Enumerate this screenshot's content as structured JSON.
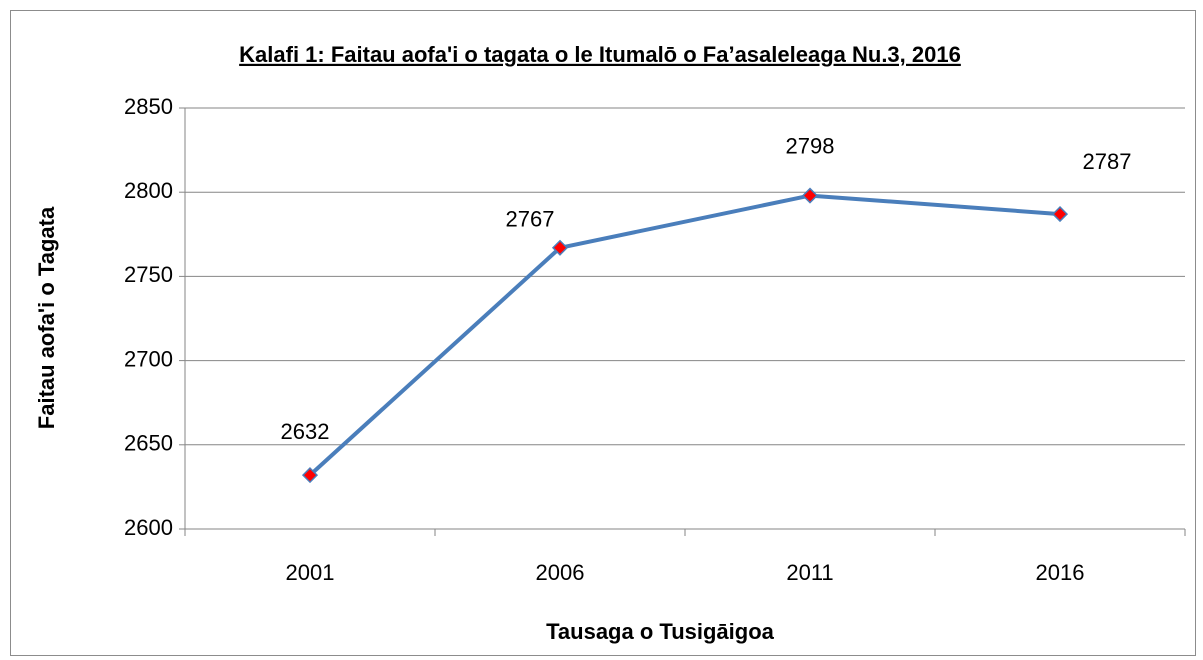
{
  "chart_data": {
    "type": "line",
    "title": "Kalafi 1: Faitau aofa'i o tagata o le Itumalō o Fa’asaleleaga Nu.3, 2016",
    "x_label": "Tausaga o Tusigāigoa",
    "y_label": "Faitau aofa'i o Tagata",
    "categories": [
      "2001",
      "2006",
      "2011",
      "2016"
    ],
    "series": [
      {
        "name": "Faitau aofa'i o Tagata",
        "color": "#4a7ebb",
        "marker_color": "#ff0000",
        "values": [
          2632,
          2767,
          2798,
          2787
        ]
      }
    ],
    "ylim": [
      2600,
      2850
    ],
    "yticks": [
      2600,
      2650,
      2700,
      2750,
      2800,
      2850
    ],
    "grid": true
  }
}
